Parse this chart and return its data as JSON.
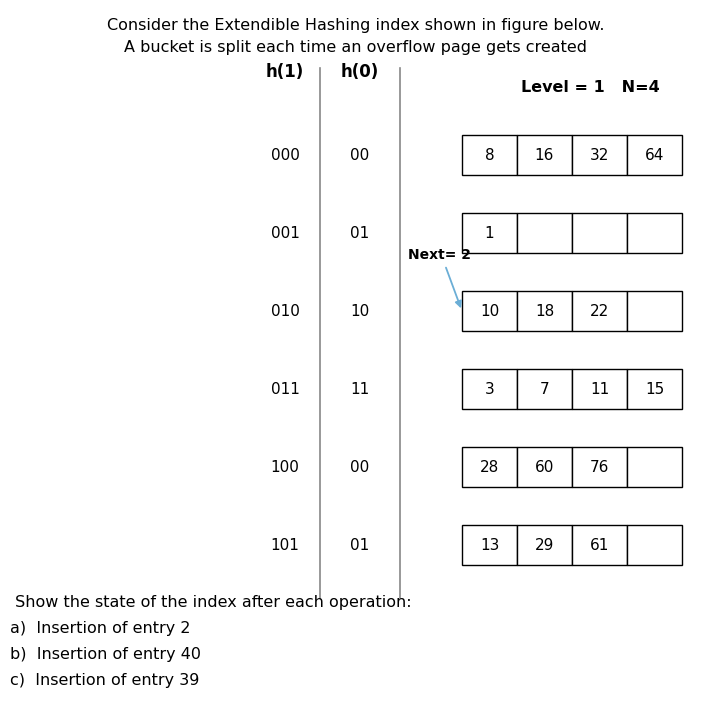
{
  "title_line1": "Consider the Extendible Hashing index shown in figure below.",
  "title_line2": "A bucket is split each time an overflow page gets created",
  "col_h1_label": "h(1)",
  "col_h0_label": "h(0)",
  "level_label": "Level = 1   N=4",
  "next_label": "Next= 2",
  "rows": [
    {
      "h1": "000",
      "h0": "00",
      "bucket": [
        "8",
        "16",
        "32",
        "64"
      ]
    },
    {
      "h1": "001",
      "h0": "01",
      "bucket": [
        "1",
        "",
        "",
        ""
      ]
    },
    {
      "h1": "010",
      "h0": "10",
      "bucket": [
        "10",
        "18",
        "22",
        ""
      ]
    },
    {
      "h1": "011",
      "h0": "11",
      "bucket": [
        "3",
        "7",
        "11",
        "15"
      ]
    },
    {
      "h1": "100",
      "h0": "00",
      "bucket": [
        "28",
        "60",
        "76",
        ""
      ]
    },
    {
      "h1": "101",
      "h0": "01",
      "bucket": [
        "13",
        "29",
        "61",
        ""
      ]
    }
  ],
  "footer_lines": [
    " Show the state of the index after each operation:",
    "a)  Insertion of entry 2",
    "b)  Insertion of entry 40",
    "c)  Insertion of entry 39"
  ],
  "bg_color": "#ffffff",
  "text_color": "#000000",
  "arrow_color": "#6baed6"
}
